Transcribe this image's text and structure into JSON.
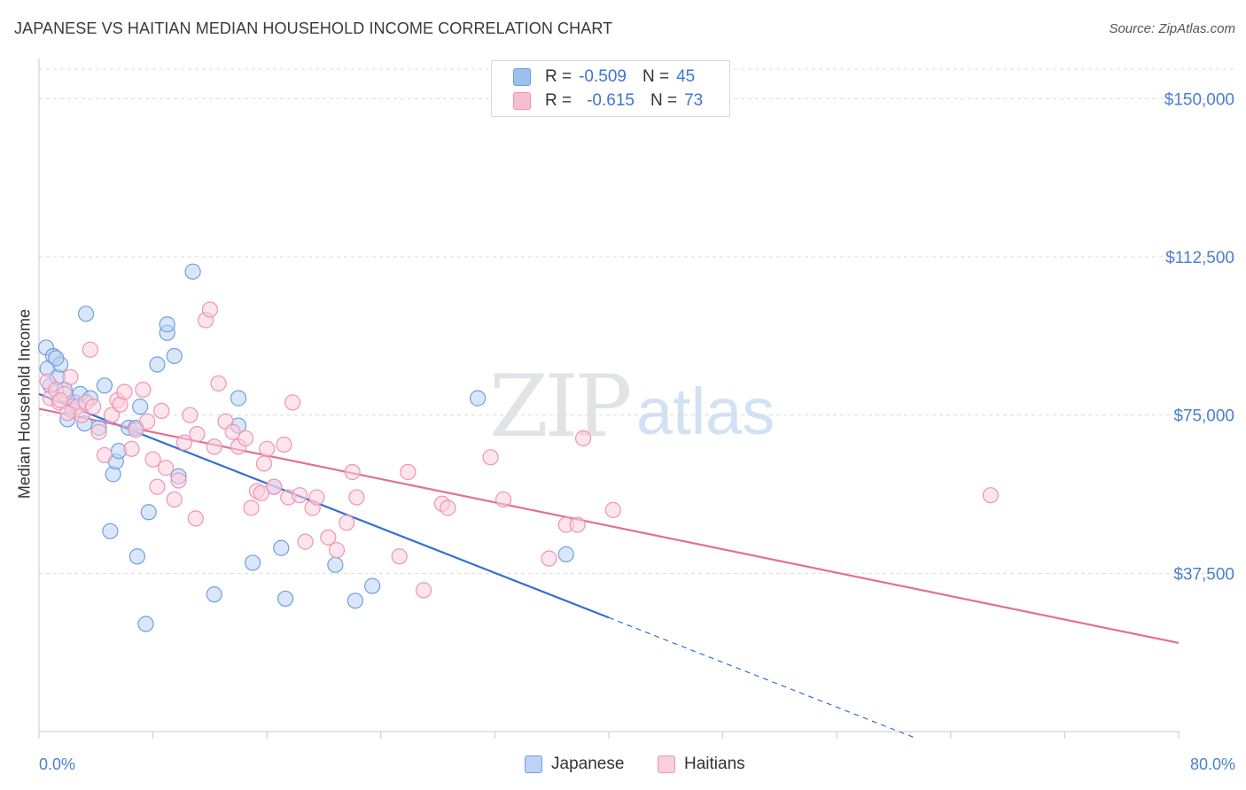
{
  "header": {
    "title": "JAPANESE VS HAITIAN MEDIAN HOUSEHOLD INCOME CORRELATION CHART",
    "source": "Source: ZipAtlas.com"
  },
  "watermark": {
    "part1": "ZIP",
    "part2": "atlas"
  },
  "legend": {
    "rows": [
      {
        "r_label": "R =",
        "r_value": "-0.509",
        "n_label": "N =",
        "n_value": "45",
        "color": "#9dc0ee",
        "border": "#6f9fe0"
      },
      {
        "r_label": "R =",
        "r_value": "-0.615",
        "n_label": "N =",
        "n_value": "73",
        "color": "#f7bdd0",
        "border": "#ef94b3"
      }
    ]
  },
  "bottom_legend": [
    {
      "label": "Japanese",
      "color": "#bcd3f5",
      "border": "#6f9fe0"
    },
    {
      "label": "Haitians",
      "color": "#f9cfdd",
      "border": "#ef94b3"
    }
  ],
  "chart_data": {
    "type": "scatter",
    "title": "JAPANESE VS HAITIAN MEDIAN HOUSEHOLD INCOME CORRELATION CHART",
    "ylabel": "Median Household Income",
    "xlabel": "",
    "xlim": [
      0,
      80
    ],
    "ylim": [
      0,
      157000
    ],
    "x_tick_labels": [
      "0.0%",
      "80.0%"
    ],
    "y_ticks": [
      37500,
      75000,
      112500,
      150000
    ],
    "y_tick_labels": [
      "$37,500",
      "$75,000",
      "$112,500",
      "$150,000"
    ],
    "grid": "horizontal dashed",
    "series": [
      {
        "name": "Japanese",
        "color": "#6f9fe0",
        "fill": "#bcd3f5",
        "points": [
          [
            0.5,
            91000
          ],
          [
            0.6,
            86000
          ],
          [
            0.8,
            82000
          ],
          [
            1.0,
            89000
          ],
          [
            1.3,
            84000
          ],
          [
            1.5,
            87000
          ],
          [
            1.8,
            81000
          ],
          [
            2.0,
            74000
          ],
          [
            2.3,
            77000
          ],
          [
            2.5,
            78000
          ],
          [
            2.9,
            80000
          ],
          [
            3.2,
            73000
          ],
          [
            3.6,
            79000
          ],
          [
            4.2,
            72000
          ],
          [
            4.6,
            82000
          ],
          [
            5.2,
            61000
          ],
          [
            5.4,
            64000
          ],
          [
            5.6,
            66500
          ],
          [
            6.3,
            72000
          ],
          [
            6.8,
            72000
          ],
          [
            7.1,
            77000
          ],
          [
            5.0,
            47500
          ],
          [
            6.9,
            41500
          ],
          [
            7.7,
            52000
          ],
          [
            7.5,
            25500
          ],
          [
            8.3,
            87000
          ],
          [
            9.0,
            94500
          ],
          [
            9.0,
            96500
          ],
          [
            9.5,
            89000
          ],
          [
            9.8,
            60500
          ],
          [
            3.3,
            99000
          ],
          [
            10.8,
            109000
          ],
          [
            12.3,
            32500
          ],
          [
            14.0,
            72500
          ],
          [
            14.0,
            79000
          ],
          [
            15.0,
            40000
          ],
          [
            16.5,
            58000
          ],
          [
            17.0,
            43500
          ],
          [
            17.3,
            31500
          ],
          [
            20.8,
            39500
          ],
          [
            22.2,
            31000
          ],
          [
            23.4,
            34500
          ],
          [
            30.8,
            79000
          ],
          [
            37.0,
            42000
          ],
          [
            1.2,
            88500
          ]
        ]
      },
      {
        "name": "Haitians",
        "color": "#ef94b3",
        "fill": "#f9cfdd",
        "points": [
          [
            0.6,
            83000
          ],
          [
            0.8,
            79000
          ],
          [
            1.2,
            81000
          ],
          [
            1.4,
            78000
          ],
          [
            1.8,
            80000
          ],
          [
            2.2,
            84000
          ],
          [
            2.4,
            76000
          ],
          [
            2.7,
            77000
          ],
          [
            3.0,
            75000
          ],
          [
            3.3,
            78000
          ],
          [
            3.6,
            90500
          ],
          [
            3.8,
            77000
          ],
          [
            4.2,
            71000
          ],
          [
            4.6,
            65500
          ],
          [
            5.1,
            75000
          ],
          [
            5.5,
            78500
          ],
          [
            5.7,
            77500
          ],
          [
            6.0,
            80500
          ],
          [
            6.5,
            67000
          ],
          [
            6.8,
            71500
          ],
          [
            7.3,
            81000
          ],
          [
            7.6,
            73500
          ],
          [
            8.0,
            64500
          ],
          [
            8.3,
            58000
          ],
          [
            8.6,
            76000
          ],
          [
            8.9,
            62500
          ],
          [
            9.5,
            55000
          ],
          [
            9.8,
            59500
          ],
          [
            10.2,
            68500
          ],
          [
            10.6,
            75000
          ],
          [
            11.1,
            70500
          ],
          [
            11.0,
            50500
          ],
          [
            11.7,
            97500
          ],
          [
            12.0,
            100000
          ],
          [
            12.3,
            67500
          ],
          [
            12.6,
            82500
          ],
          [
            13.1,
            73500
          ],
          [
            13.6,
            71000
          ],
          [
            14.0,
            67500
          ],
          [
            14.5,
            69500
          ],
          [
            14.9,
            53000
          ],
          [
            15.3,
            57000
          ],
          [
            15.6,
            56500
          ],
          [
            15.8,
            63500
          ],
          [
            16.0,
            67000
          ],
          [
            16.5,
            58000
          ],
          [
            17.2,
            68000
          ],
          [
            17.5,
            55500
          ],
          [
            17.8,
            78000
          ],
          [
            18.3,
            56000
          ],
          [
            18.7,
            45000
          ],
          [
            19.2,
            53000
          ],
          [
            19.5,
            55500
          ],
          [
            20.3,
            46000
          ],
          [
            20.9,
            43000
          ],
          [
            21.6,
            49500
          ],
          [
            22.0,
            61500
          ],
          [
            22.3,
            55500
          ],
          [
            25.3,
            41500
          ],
          [
            25.9,
            61500
          ],
          [
            27.0,
            33500
          ],
          [
            28.3,
            54000
          ],
          [
            28.7,
            53000
          ],
          [
            31.7,
            65000
          ],
          [
            32.6,
            55000
          ],
          [
            35.8,
            41000
          ],
          [
            37.0,
            49000
          ],
          [
            37.8,
            49000
          ],
          [
            38.2,
            69500
          ],
          [
            40.3,
            52500
          ],
          [
            66.8,
            56000
          ],
          [
            1.5,
            78500
          ],
          [
            2.0,
            75500
          ]
        ]
      }
    ],
    "trend_lines": [
      {
        "series": "Japanese",
        "solid": [
          [
            0,
            80000
          ],
          [
            40,
            27000
          ]
        ],
        "dashed": [
          [
            40,
            27000
          ],
          [
            61.5,
            -1500
          ]
        ]
      },
      {
        "series": "Haitians",
        "solid": [
          [
            0,
            76500
          ],
          [
            80,
            21000
          ]
        ]
      }
    ]
  }
}
